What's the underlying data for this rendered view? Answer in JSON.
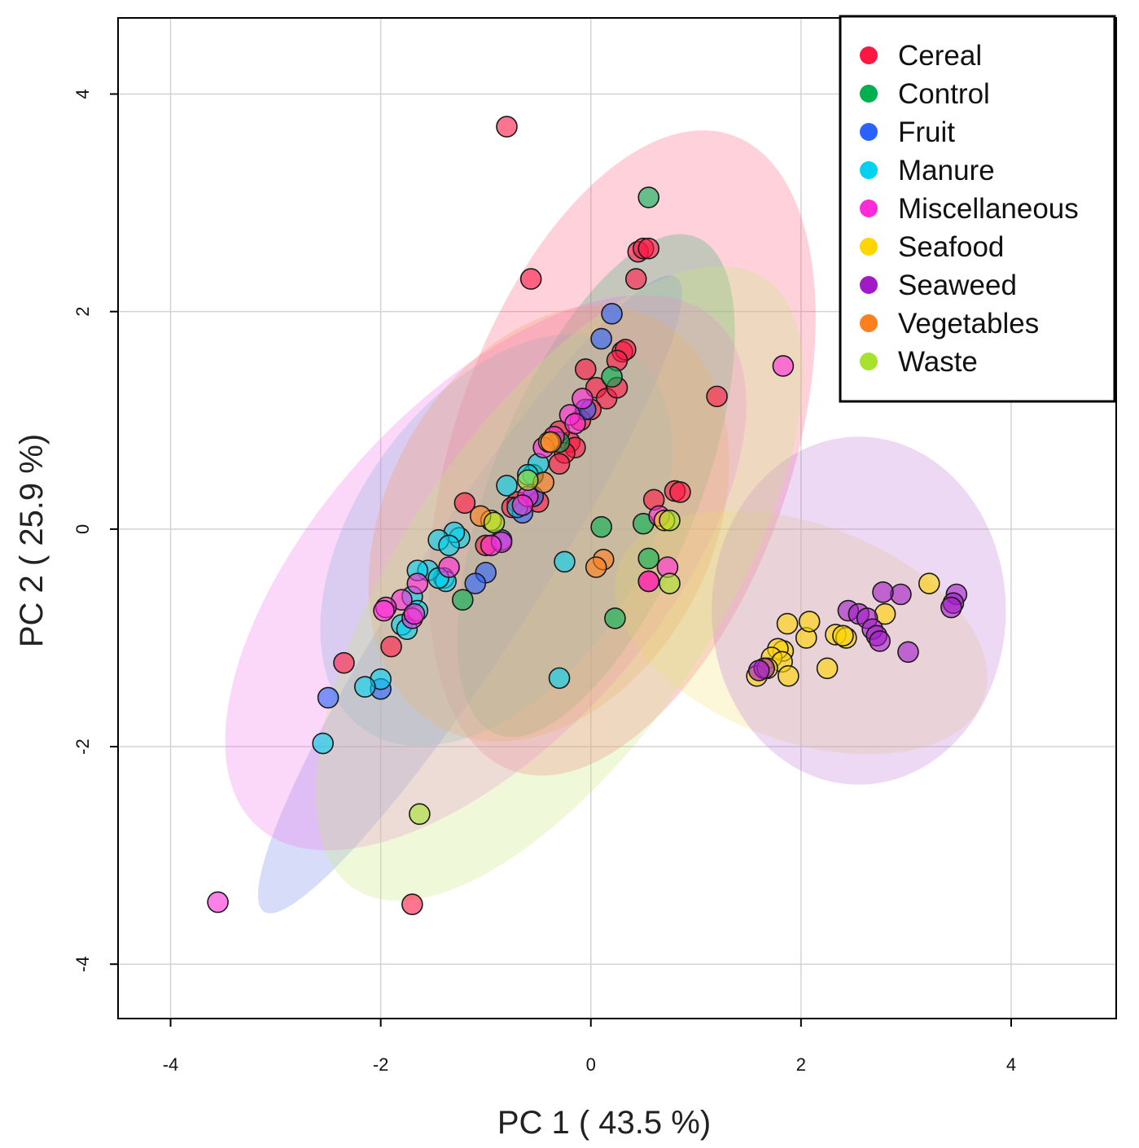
{
  "chart_data": {
    "type": "scatter",
    "title": "",
    "xlabel": "PC 1 ( 43.5 %)",
    "ylabel": "PC 2 ( 25.9 %)",
    "xlim": [
      -4.5,
      5.0
    ],
    "ylim": [
      -4.5,
      4.7
    ],
    "xticks": [
      -4,
      -2,
      0,
      2,
      4
    ],
    "yticks": [
      -4,
      -2,
      0,
      2,
      4
    ],
    "xtick_labels": [
      "-4",
      "-2",
      "0",
      "2",
      "4"
    ],
    "ytick_labels": [
      "-4",
      "-2",
      "0",
      "2",
      "4"
    ],
    "grid": true,
    "legend_position": "top-right",
    "series": [
      {
        "name": "Cereal",
        "color": "#ff1744",
        "x": [
          -0.8,
          0.45,
          0.5,
          0.55,
          0.43,
          -0.57,
          0.3,
          0.33,
          0.25,
          -0.05,
          0.05,
          0.15,
          0.25,
          1.2,
          -0.1,
          0.0,
          -0.2,
          -0.3,
          -0.15,
          -0.25,
          -0.3,
          0.6,
          0.8,
          0.85,
          -1.2,
          -1.0,
          -0.5,
          -0.7,
          -0.75,
          -1.9,
          -2.35,
          -1.7,
          0.55
        ],
        "y": [
          3.7,
          2.55,
          2.58,
          2.58,
          2.3,
          2.3,
          1.63,
          1.65,
          1.55,
          1.47,
          1.3,
          1.2,
          1.3,
          1.22,
          1.0,
          1.1,
          0.8,
          0.9,
          0.75,
          0.7,
          0.6,
          0.27,
          0.35,
          0.34,
          0.24,
          -0.15,
          0.25,
          0.25,
          0.2,
          -1.08,
          -1.23,
          -3.45,
          -0.48
        ]
      },
      {
        "name": "Control",
        "color": "#00b050",
        "x": [
          0.55,
          0.2,
          0.1,
          0.5,
          0.55,
          0.23,
          -1.22,
          -0.55,
          -0.3
        ],
        "y": [
          3.05,
          1.4,
          0.02,
          0.05,
          -0.27,
          -0.82,
          -0.65,
          0.5,
          0.8
        ]
      },
      {
        "name": "Fruit",
        "color": "#2962ff",
        "x": [
          0.2,
          0.1,
          -0.05,
          -0.85,
          -0.65,
          -1.0,
          -1.1,
          -2.5,
          -2.0,
          -0.55
        ],
        "y": [
          1.98,
          1.75,
          1.1,
          -0.1,
          0.15,
          -0.4,
          -0.5,
          -1.55,
          -1.47,
          0.3
        ]
      },
      {
        "name": "Manure",
        "color": "#00d2f0",
        "x": [
          -0.5,
          -0.6,
          -0.8,
          -0.7,
          -1.25,
          -1.3,
          -1.45,
          -1.35,
          -1.4,
          -1.55,
          -1.65,
          -1.7,
          -1.65,
          -1.8,
          -1.75,
          -2.0,
          -2.15,
          -2.55,
          -1.38,
          -1.45,
          -0.25,
          -0.3
        ],
        "y": [
          0.6,
          0.5,
          0.4,
          0.2,
          -0.08,
          -0.03,
          -0.1,
          -0.15,
          -0.45,
          -0.38,
          -0.38,
          -0.62,
          -0.75,
          -0.88,
          -0.92,
          -1.38,
          -1.45,
          -1.97,
          -0.48,
          -0.45,
          -0.3,
          -1.37
        ]
      },
      {
        "name": "Miscellaneous",
        "color": "#ff2bd8",
        "x": [
          -0.2,
          -0.15,
          -0.35,
          -0.45,
          -0.6,
          -0.65,
          -0.85,
          -0.95,
          -1.35,
          -1.65,
          -1.7,
          -1.8,
          -1.95,
          -1.97,
          -1.68,
          0.65,
          0.73,
          0.55,
          -3.55,
          1.83,
          -0.08
        ],
        "y": [
          1.05,
          0.97,
          0.85,
          0.75,
          0.3,
          0.22,
          -0.12,
          -0.15,
          -0.35,
          -0.5,
          -0.82,
          -0.65,
          -0.72,
          -0.75,
          -0.78,
          0.12,
          -0.35,
          -0.48,
          -3.43,
          1.5,
          1.2
        ]
      },
      {
        "name": "Seafood",
        "color": "#ffd600",
        "x": [
          3.22,
          2.8,
          2.33,
          2.43,
          2.4,
          2.05,
          2.08,
          1.87,
          1.83,
          1.78,
          1.72,
          1.82,
          1.88,
          1.58,
          2.25,
          1.68,
          -0.4,
          0.7,
          -0.95
        ],
        "y": [
          -0.5,
          -0.78,
          -0.97,
          -1.0,
          -0.98,
          -1.0,
          -0.85,
          -0.87,
          -1.12,
          -1.1,
          -1.18,
          -1.22,
          -1.35,
          -1.35,
          -1.28,
          -1.28,
          0.8,
          0.08,
          0.08
        ]
      },
      {
        "name": "Seaweed",
        "color": "#a21ac8",
        "x": [
          3.48,
          3.45,
          3.43,
          2.95,
          2.78,
          2.45,
          2.55,
          2.63,
          2.68,
          2.72,
          2.75,
          3.02,
          1.65,
          1.6
        ],
        "y": [
          -0.6,
          -0.68,
          -0.72,
          -0.6,
          -0.58,
          -0.75,
          -0.78,
          -0.82,
          -0.92,
          -0.98,
          -1.03,
          -1.13,
          -1.28,
          -1.3
        ]
      },
      {
        "name": "Vegetables",
        "color": "#ff7f1e",
        "x": [
          -0.38,
          -1.05,
          0.12,
          0.05,
          -0.45
        ],
        "y": [
          0.8,
          0.12,
          -0.28,
          -0.35,
          0.43
        ]
      },
      {
        "name": "Waste",
        "color": "#a6e22e",
        "x": [
          -0.6,
          -0.92,
          0.75,
          0.75,
          -1.63
        ],
        "y": [
          0.45,
          0.06,
          0.08,
          -0.5,
          -2.62
        ]
      }
    ],
    "ellipses": [
      {
        "name": "Cereal",
        "cx": 0.3,
        "cy": 0.7,
        "rx": 3.2,
        "ry": 1.55,
        "angle_deg": 71,
        "color": "#ff5c7c"
      },
      {
        "name": "Control",
        "cx": 0.05,
        "cy": 0.4,
        "rx": 2.55,
        "ry": 0.95,
        "angle_deg": 68,
        "color": "#2fae6a"
      },
      {
        "name": "Fruit",
        "cx": -1.15,
        "cy": -0.6,
        "rx": 3.6,
        "ry": 0.55,
        "angle_deg": 57,
        "color": "#6f86e8"
      },
      {
        "name": "Manure",
        "cx": -0.9,
        "cy": -0.1,
        "rx": 2.2,
        "ry": 1.3,
        "angle_deg": 55,
        "color": "#5bc5d7"
      },
      {
        "name": "Miscellaneous",
        "cx": -1.0,
        "cy": -0.4,
        "rx": 3.25,
        "ry": 1.55,
        "angle_deg": 48,
        "color": "#f06ee8"
      },
      {
        "name": "Seafood",
        "cx": 2.0,
        "cy": -0.95,
        "rx": 1.85,
        "ry": 1.0,
        "angle_deg": -20,
        "color": "#f2e173"
      },
      {
        "name": "Seaweed",
        "cx": 2.55,
        "cy": -0.75,
        "rx": 1.4,
        "ry": 1.6,
        "angle_deg": 0,
        "color": "#bf78d7"
      },
      {
        "name": "Vegetables",
        "cx": -0.4,
        "cy": 0.05,
        "rx": 2.2,
        "ry": 1.5,
        "angle_deg": 62,
        "color": "#f79a5f"
      },
      {
        "name": "Waste",
        "cx": -0.3,
        "cy": -0.5,
        "rx": 3.5,
        "ry": 1.45,
        "angle_deg": 56,
        "color": "#c6ea7a"
      }
    ]
  }
}
